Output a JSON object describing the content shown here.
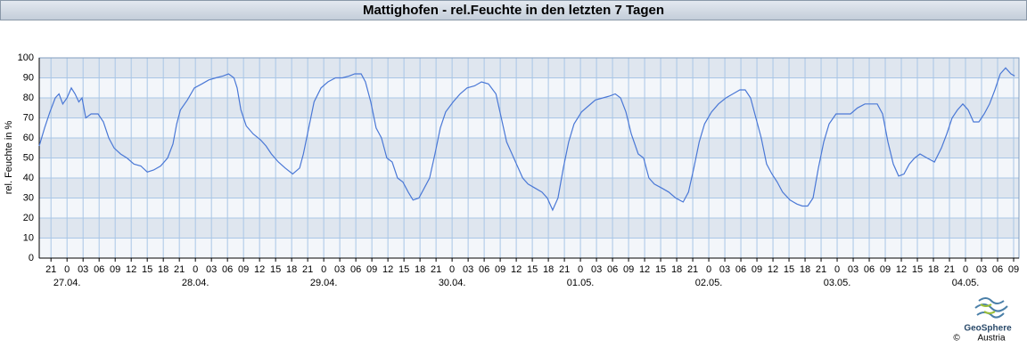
{
  "chart_data": {
    "type": "line",
    "title": "Mattighofen - rel.Feuchte in den letzten 7 Tagen",
    "y_label": "rel. Feuchte in %",
    "color": "#4a78d6",
    "grid": true,
    "ylim": [
      0,
      100
    ],
    "yticks": [
      0,
      10,
      20,
      30,
      40,
      50,
      60,
      70,
      80,
      90,
      100
    ],
    "xlim": [
      -5.2,
      178
    ],
    "xticks": [
      {
        "value": -3,
        "label": "21"
      },
      {
        "value": 0,
        "label": "0"
      },
      {
        "value": 3,
        "label": "03"
      },
      {
        "value": 6,
        "label": "06"
      },
      {
        "value": 9,
        "label": "09"
      },
      {
        "value": 12,
        "label": "12"
      },
      {
        "value": 15,
        "label": "15"
      },
      {
        "value": 18,
        "label": "18"
      },
      {
        "value": 21,
        "label": "21"
      },
      {
        "value": 24,
        "label": "0"
      },
      {
        "value": 27,
        "label": "03"
      },
      {
        "value": 30,
        "label": "06"
      },
      {
        "value": 33,
        "label": "09"
      },
      {
        "value": 36,
        "label": "12"
      },
      {
        "value": 39,
        "label": "15"
      },
      {
        "value": 42,
        "label": "18"
      },
      {
        "value": 45,
        "label": "21"
      },
      {
        "value": 48,
        "label": "0"
      },
      {
        "value": 51,
        "label": "03"
      },
      {
        "value": 54,
        "label": "06"
      },
      {
        "value": 57,
        "label": "09"
      },
      {
        "value": 60,
        "label": "12"
      },
      {
        "value": 63,
        "label": "15"
      },
      {
        "value": 66,
        "label": "18"
      },
      {
        "value": 69,
        "label": "21"
      },
      {
        "value": 72,
        "label": "0"
      },
      {
        "value": 75,
        "label": "03"
      },
      {
        "value": 78,
        "label": "06"
      },
      {
        "value": 81,
        "label": "09"
      },
      {
        "value": 84,
        "label": "12"
      },
      {
        "value": 87,
        "label": "15"
      },
      {
        "value": 90,
        "label": "18"
      },
      {
        "value": 93,
        "label": "21"
      },
      {
        "value": 96,
        "label": "0"
      },
      {
        "value": 99,
        "label": "03"
      },
      {
        "value": 102,
        "label": "06"
      },
      {
        "value": 105,
        "label": "09"
      },
      {
        "value": 108,
        "label": "12"
      },
      {
        "value": 111,
        "label": "15"
      },
      {
        "value": 114,
        "label": "18"
      },
      {
        "value": 117,
        "label": "21"
      },
      {
        "value": 120,
        "label": "0"
      },
      {
        "value": 123,
        "label": "03"
      },
      {
        "value": 126,
        "label": "06"
      },
      {
        "value": 129,
        "label": "09"
      },
      {
        "value": 132,
        "label": "12"
      },
      {
        "value": 135,
        "label": "15"
      },
      {
        "value": 138,
        "label": "18"
      },
      {
        "value": 141,
        "label": "21"
      },
      {
        "value": 144,
        "label": "0"
      },
      {
        "value": 147,
        "label": "03"
      },
      {
        "value": 150,
        "label": "06"
      },
      {
        "value": 153,
        "label": "09"
      },
      {
        "value": 156,
        "label": "12"
      },
      {
        "value": 159,
        "label": "15"
      },
      {
        "value": 162,
        "label": "18"
      },
      {
        "value": 165,
        "label": "21"
      },
      {
        "value": 168,
        "label": "0"
      },
      {
        "value": 171,
        "label": "03"
      },
      {
        "value": 174,
        "label": "06"
      },
      {
        "value": 177,
        "label": "09"
      }
    ],
    "day_labels": [
      {
        "value": 0,
        "label": "27.04."
      },
      {
        "value": 24,
        "label": "28.04."
      },
      {
        "value": 48,
        "label": "29.04."
      },
      {
        "value": 72,
        "label": "30.04."
      },
      {
        "value": 96,
        "label": "01.05."
      },
      {
        "value": 120,
        "label": "02.05."
      },
      {
        "value": 144,
        "label": "03.05."
      },
      {
        "value": 168,
        "label": "04.05."
      }
    ],
    "x": [
      -5.2,
      -4.2,
      -3.2,
      -2.2,
      -1.5,
      -0.8,
      0,
      0.8,
      1.5,
      2.2,
      2.8,
      3.5,
      4.5,
      5.8,
      6.8,
      7.8,
      8.8,
      10,
      11.2,
      12.5,
      13.8,
      15,
      16.2,
      17.5,
      18.8,
      19.8,
      20.5,
      21.2,
      22.5,
      23.8,
      25.2,
      26.5,
      27.8,
      29.2,
      30.2,
      31.2,
      31.8,
      32.5,
      33.5,
      34.8,
      36.2,
      37.2,
      38.2,
      39.5,
      40.8,
      42.2,
      43.5,
      44.2,
      45.2,
      46.2,
      47.5,
      48.8,
      50.2,
      51.5,
      52.8,
      53.8,
      55,
      55.8,
      56.8,
      57.8,
      58.8,
      59.8,
      60.8,
      61.8,
      62.8,
      63.8,
      64.7,
      65.8,
      66.8,
      67.8,
      68.8,
      69.8,
      70.8,
      72.2,
      73.5,
      74.8,
      76.2,
      77.5,
      78.8,
      80.2,
      81.2,
      82.2,
      83.2,
      84.2,
      85.2,
      86.2,
      87.5,
      88.8,
      89.8,
      90.8,
      91.8,
      92.8,
      93.8,
      94.8,
      96.2,
      97.5,
      98.8,
      100.2,
      101.5,
      102.5,
      103.5,
      104.5,
      105.5,
      106.8,
      107.8,
      108.8,
      109.8,
      111.2,
      112.5,
      113.8,
      115.2,
      116.2,
      117.2,
      118.2,
      119.2,
      120.5,
      121.8,
      123.2,
      124.5,
      125.8,
      126.8,
      127.8,
      128.8,
      129.8,
      130.8,
      131.8,
      132.8,
      133.8,
      135.2,
      136.5,
      137.5,
      138.5,
      139.5,
      140.5,
      141.5,
      142.5,
      143.8,
      145.2,
      146.5,
      147.8,
      149.2,
      150.5,
      151.5,
      152.5,
      153.5,
      154.5,
      155.5,
      156.5,
      157.5,
      158.5,
      159.5,
      160.8,
      162.2,
      163.5,
      164.5,
      165.5,
      166.5,
      167.5,
      168.5,
      169.5,
      170.5,
      171.5,
      172.5,
      173.5,
      174.5,
      175.5,
      176.5,
      177.2
    ],
    "values": [
      56,
      65,
      73,
      80,
      82,
      77,
      80,
      85,
      82,
      78,
      80,
      70,
      72,
      72,
      68,
      60,
      55,
      52,
      50,
      47,
      46,
      43,
      44,
      46,
      50,
      57,
      67,
      74,
      79,
      85,
      87,
      89,
      90,
      91,
      92,
      90,
      85,
      74,
      66,
      62,
      59,
      56,
      52,
      48,
      45,
      42,
      45,
      52,
      65,
      78,
      85,
      88,
      90,
      90,
      91,
      92,
      92,
      88,
      78,
      65,
      60,
      50,
      48,
      40,
      38,
      33,
      29,
      30,
      35,
      40,
      52,
      65,
      73,
      78,
      82,
      85,
      86,
      88,
      87,
      82,
      70,
      58,
      52,
      46,
      40,
      37,
      35,
      33,
      30,
      24,
      30,
      45,
      58,
      67,
      73,
      76,
      79,
      80,
      81,
      82,
      80,
      73,
      62,
      52,
      50,
      40,
      37,
      35,
      33,
      30,
      28,
      33,
      45,
      58,
      67,
      73,
      77,
      80,
      82,
      84,
      84,
      80,
      70,
      60,
      47,
      42,
      38,
      33,
      29,
      27,
      26,
      26,
      30,
      45,
      58,
      67,
      72,
      72,
      72,
      75,
      77,
      77,
      77,
      72,
      58,
      47,
      41,
      42,
      47,
      50,
      52,
      50,
      48,
      55,
      62,
      70,
      74,
      77,
      74,
      68,
      68,
      72,
      77,
      84,
      92,
      95,
      92,
      91
    ]
  },
  "logo": {
    "name": "GeoSphere",
    "sub": "Austria",
    "copyright": "©"
  }
}
